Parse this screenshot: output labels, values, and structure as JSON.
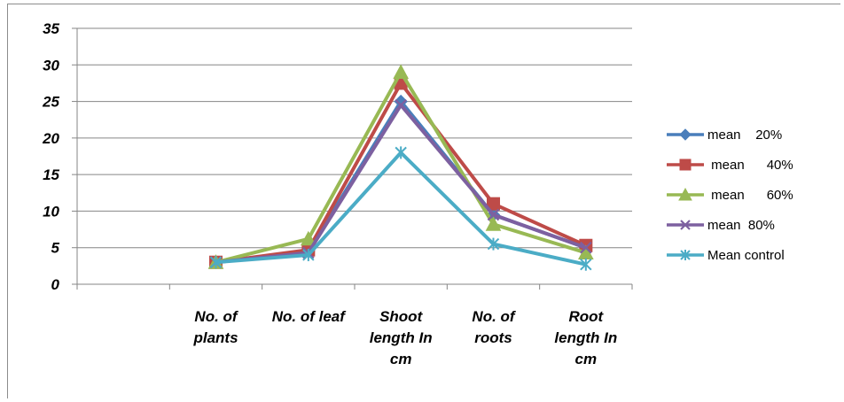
{
  "chart_data": {
    "type": "line",
    "title": "",
    "xlabel": "",
    "ylabel": "",
    "categories": [
      [
        "No. of",
        "plants"
      ],
      [
        "No. of leaf"
      ],
      [
        "Shoot",
        "length In",
        "cm"
      ],
      [
        "No. of",
        "roots"
      ],
      [
        "Root",
        "length In",
        "cm"
      ]
    ],
    "ylim": [
      0,
      35
    ],
    "yticks": [
      "0",
      "5",
      "10",
      "15",
      "20",
      "25",
      "30",
      "35"
    ],
    "grid": true,
    "legend_position": "right",
    "series": [
      {
        "name": "mean    20%",
        "color": "#4a7ebb",
        "marker": "diamond",
        "values": [
          3,
          4.5,
          25,
          9.5,
          5
        ]
      },
      {
        "name": " mean      40%",
        "color": "#be4b48",
        "marker": "square",
        "values": [
          3,
          4.7,
          27.5,
          11,
          5.3
        ]
      },
      {
        "name": " mean      60%",
        "color": "#98b954",
        "marker": "triangle",
        "values": [
          3,
          6.2,
          29,
          8.2,
          4.3
        ]
      },
      {
        "name": "mean  80%",
        "color": "#7d60a0",
        "marker": "x",
        "values": [
          3,
          4.3,
          24.5,
          9.5,
          5
        ]
      },
      {
        "name": "Mean control",
        "color": "#4bacc6",
        "marker": "star",
        "values": [
          3,
          4,
          18,
          5.5,
          2.7
        ]
      }
    ]
  }
}
